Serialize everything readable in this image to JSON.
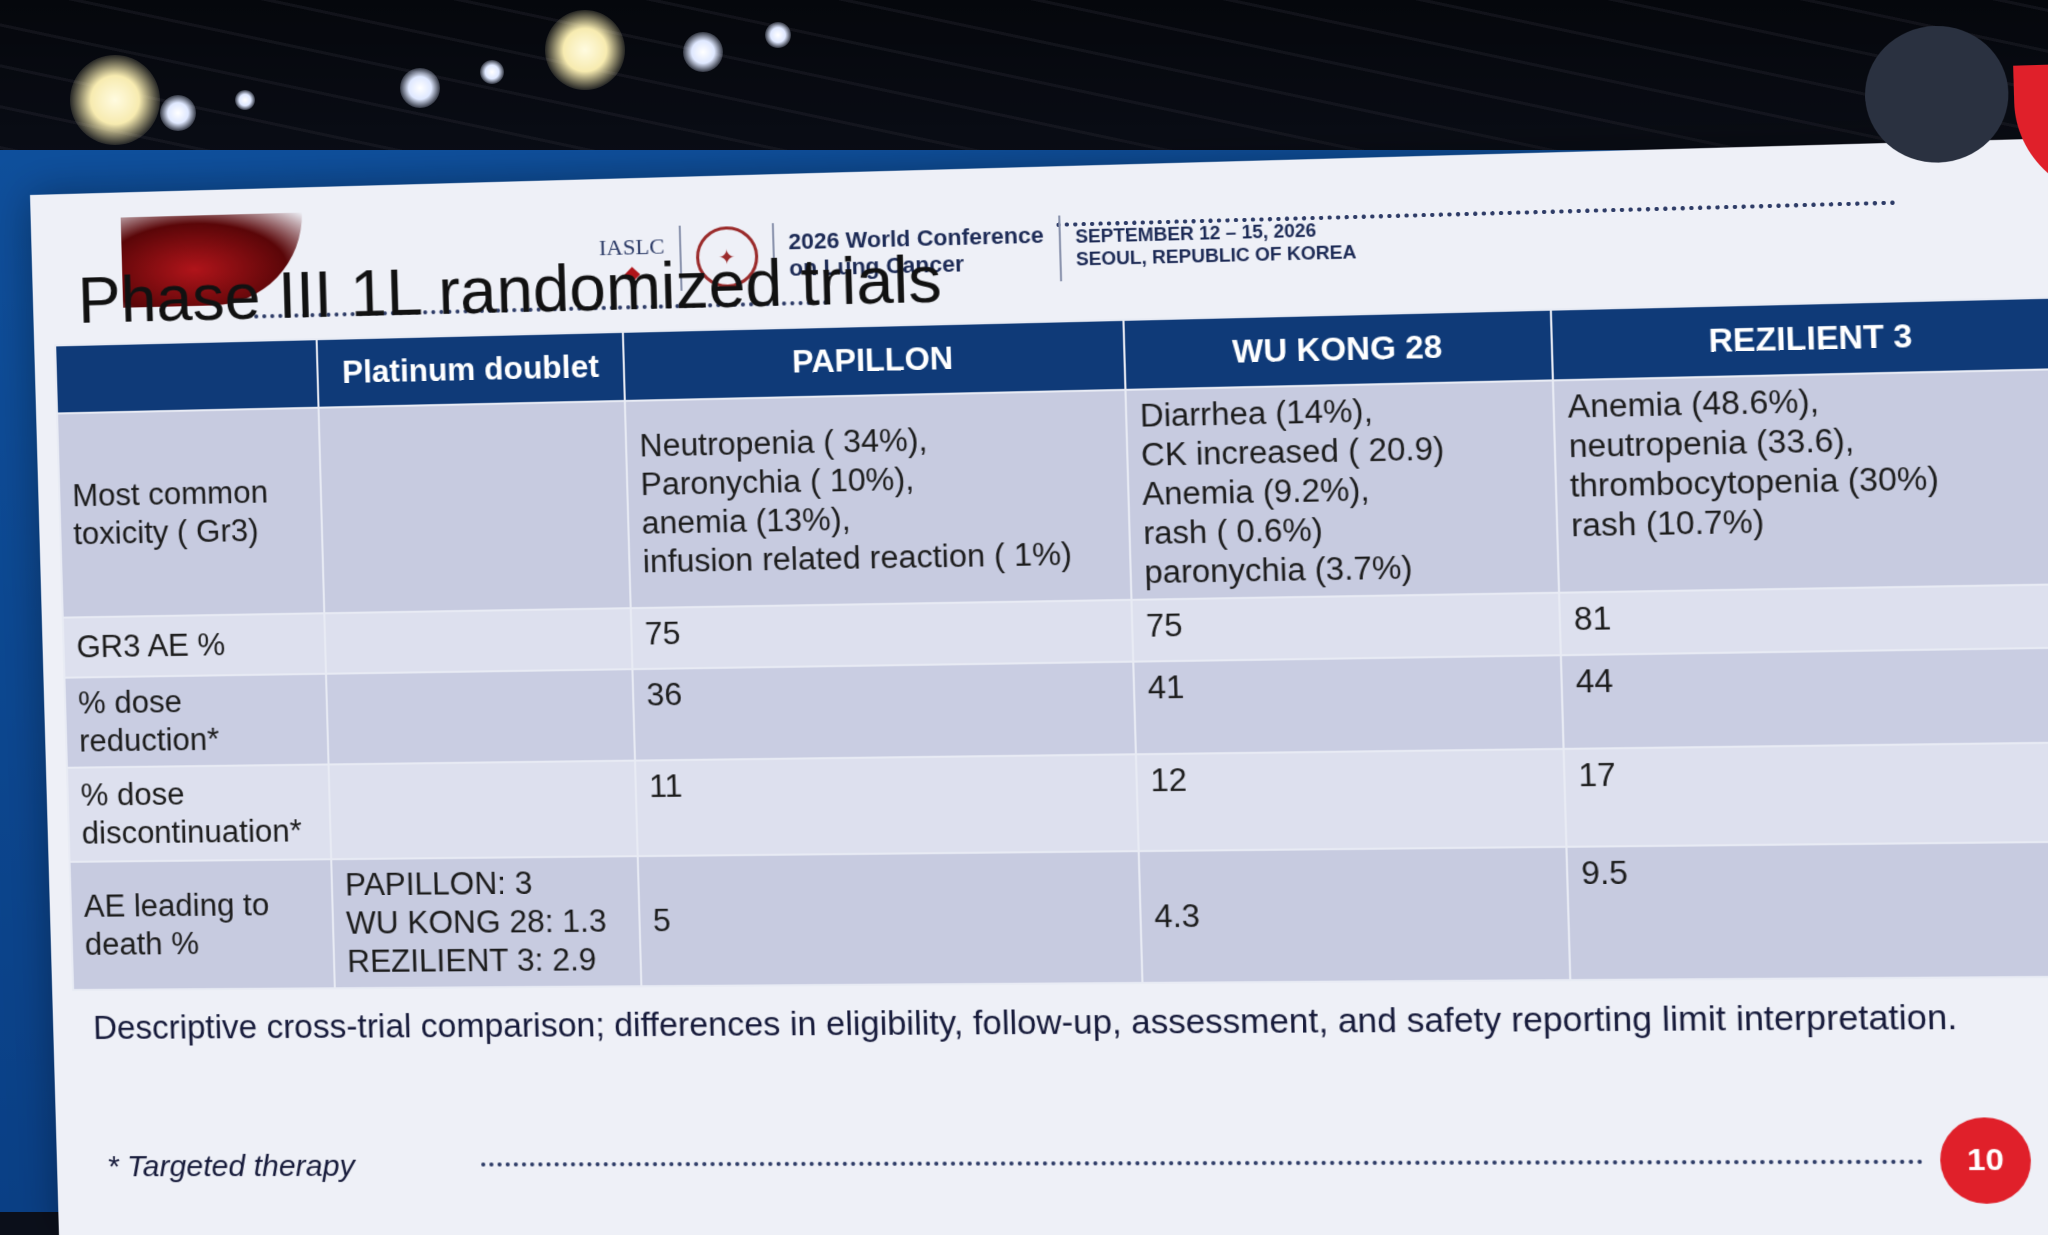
{
  "conference": {
    "org": "IASLC",
    "name_line1": "2026 World Conference",
    "name_line2": "on Lung Cancer",
    "date": "SEPTEMBER 12 – 15, 2026",
    "location": "SEOUL, REPUBLIC OF KOREA"
  },
  "slide": {
    "title": "Phase III 1L randomized trials",
    "note": "Descriptive cross-trial comparison; differences in eligibility, follow-up, assessment, and safety reporting limit interpretation.",
    "footnote": "* Targeted therapy",
    "page_number": "10"
  },
  "table": {
    "headers": [
      "",
      "Platinum doublet",
      "PAPILLON",
      "WU KONG 28",
      "REZILIENT 3"
    ],
    "rows": [
      {
        "label": "Most common toxicity ( Gr3)",
        "platinum": "",
        "papillon": [
          "Neutropenia ( 34%),",
          "Paronychia ( 10%),",
          "anemia (13%),",
          "infusion related reaction ( 1%)"
        ],
        "wukong": [
          "Diarrhea (14%),",
          "CK increased ( 20.9)",
          "Anemia (9.2%),",
          "rash ( 0.6%)",
          "paronychia (3.7%)"
        ],
        "rezilient": [
          "Anemia (48.6%),",
          "neutropenia (33.6),",
          "thrombocytopenia (30%)",
          "rash (10.7%)"
        ]
      },
      {
        "label": "GR3 AE %",
        "platinum": "",
        "papillon": "75",
        "wukong": "75",
        "rezilient": "81"
      },
      {
        "label": "% dose reduction*",
        "platinum": "",
        "papillon": "36",
        "wukong": "41",
        "rezilient": "44"
      },
      {
        "label": "% dose discontinuation*",
        "platinum": "",
        "papillon": "11",
        "wukong": "12",
        "rezilient": "17"
      },
      {
        "label": "AE leading to death %",
        "platinum": [
          "PAPILLON: 3",
          "WU KONG 28:  1.3",
          "REZILIENT 3: 2.9"
        ],
        "papillon": "5",
        "wukong": "4.3",
        "rezilient": "9.5"
      }
    ]
  },
  "colors": {
    "header_blue": "#0f3a78",
    "accent_red": "#e0202a",
    "stage_blue": "#0e4f9c"
  }
}
